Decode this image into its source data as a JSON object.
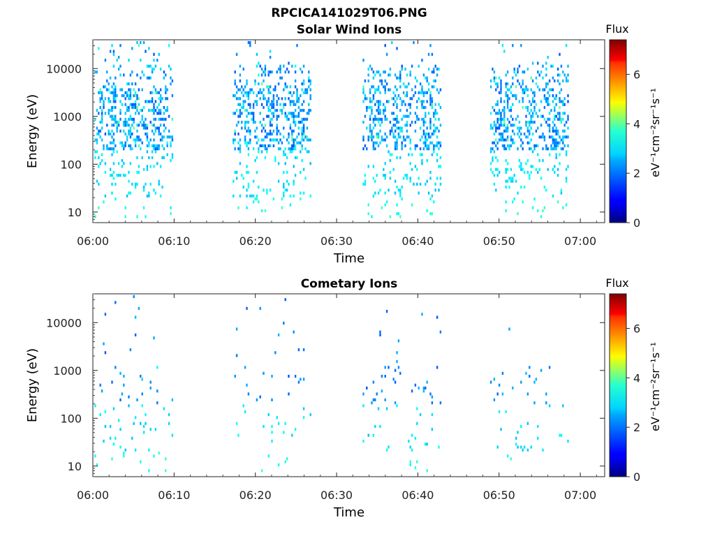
{
  "figure": {
    "title": "RPCICA141029T06.PNG"
  },
  "colorbar": {
    "label": "Flux",
    "unit_label": "eV⁻¹cm⁻²sr⁻¹s⁻¹",
    "ticks": [
      "0",
      "2",
      "4",
      "6"
    ],
    "colormap": "jet",
    "range": [
      0,
      7.4
    ]
  },
  "colors": {
    "low": "#00007f",
    "mid_low": "#0055ff",
    "mid": "#27ffcf",
    "mid_high": "#fffb00",
    "high": "#7f0000"
  },
  "chart_data": [
    {
      "type": "heatmap",
      "title": "Solar Wind Ions",
      "xlabel": "Time",
      "ylabel": "Energy (eV)",
      "xticks": [
        "06:00",
        "06:10",
        "06:20",
        "06:30",
        "06:40",
        "06:50",
        "07:00"
      ],
      "yticks": [
        "10",
        "100",
        "1000",
        "10000"
      ],
      "yscale": "log",
      "xlim_minutes": [
        0,
        63
      ],
      "ylim": [
        6,
        40000
      ],
      "bursts_start_minutes": [
        0.2,
        17.2,
        33.2,
        48.9
      ],
      "burst_duration_minutes": 9.5,
      "flux_range": [
        1.5,
        3.6
      ]
    },
    {
      "type": "heatmap",
      "title": "Cometary Ions",
      "xlabel": "Time",
      "ylabel": "Energy (eV)",
      "xticks": [
        "06:00",
        "06:10",
        "06:20",
        "06:30",
        "06:40",
        "06:50",
        "07:00"
      ],
      "yticks": [
        "10",
        "100",
        "1000",
        "10000"
      ],
      "yscale": "log",
      "xlim_minutes": [
        0,
        63
      ],
      "ylim": [
        6,
        40000
      ],
      "bursts_start_minutes": [
        0.2,
        17.2,
        33.2,
        48.9
      ],
      "burst_duration_minutes": 9.5,
      "flux_range": [
        1.5,
        3.0
      ]
    }
  ]
}
